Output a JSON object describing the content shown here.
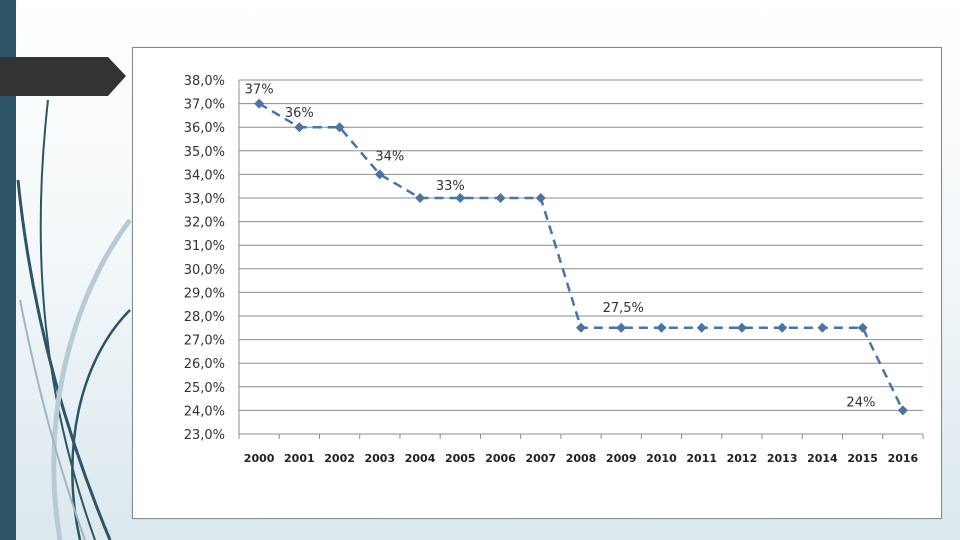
{
  "theme": {
    "side_bar_color": "#2e5468",
    "arrow_tab_color": "#333333",
    "line_color": "#4a74a6",
    "grid_color": "#8c8c8c"
  },
  "chart_data": {
    "type": "line",
    "line_style": "dashed",
    "marker": "diamond",
    "grid": true,
    "legend": "none",
    "x": [
      "2000",
      "2001",
      "2002",
      "2003",
      "2004",
      "2005",
      "2006",
      "2007",
      "2008",
      "2009",
      "2010",
      "2011",
      "2012",
      "2013",
      "2014",
      "2015",
      "2016"
    ],
    "series": [
      {
        "values": [
          37.0,
          36.0,
          36.0,
          34.0,
          33.0,
          33.0,
          33.0,
          33.0,
          27.5,
          27.5,
          27.5,
          27.5,
          27.5,
          27.5,
          27.5,
          27.5,
          24.0
        ]
      }
    ],
    "ylim": [
      23.0,
      38.0
    ],
    "yticks": [
      "23,0%",
      "24,0%",
      "25,0%",
      "26,0%",
      "27,0%",
      "28,0%",
      "29,0%",
      "30,0%",
      "31,0%",
      "32,0%",
      "33,0%",
      "34,0%",
      "35,0%",
      "36,0%",
      "37,0%",
      "38,0%"
    ],
    "data_labels": [
      {
        "year": "2000",
        "text": "37%"
      },
      {
        "year": "2001",
        "text": "36%"
      },
      {
        "year": "2003",
        "text": "34%"
      },
      {
        "year": "2005",
        "text": "33%"
      },
      {
        "year": "2009",
        "text": "27,5%"
      },
      {
        "year": "2016",
        "text": "24%"
      }
    ]
  }
}
